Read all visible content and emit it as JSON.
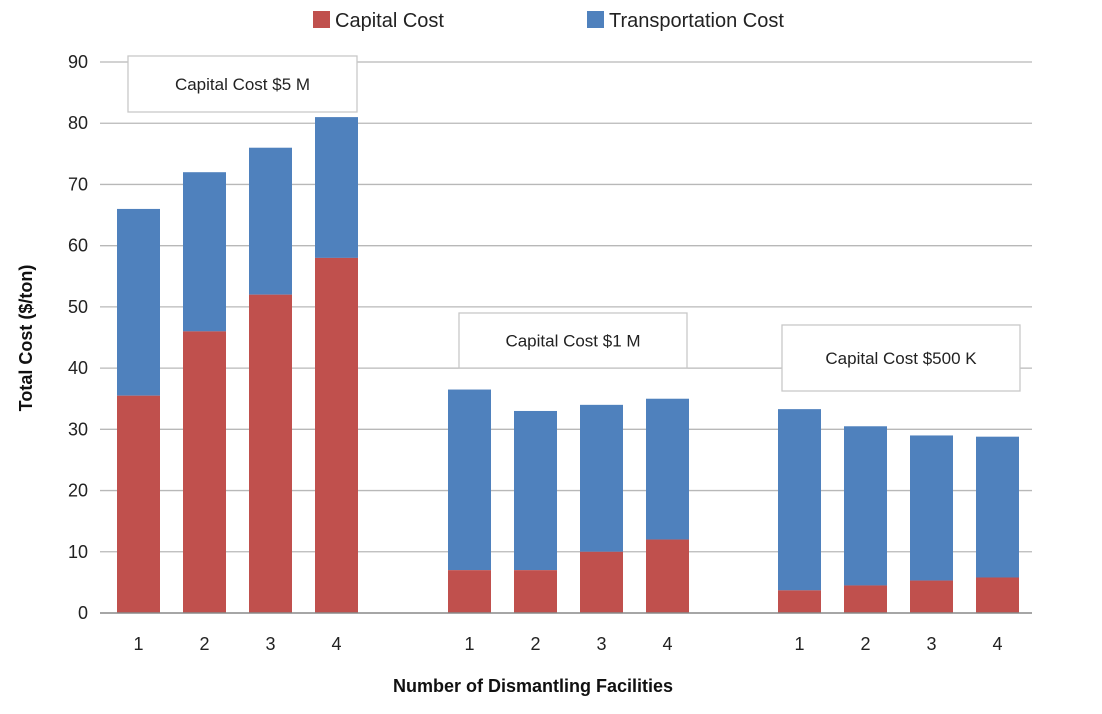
{
  "chart_data": {
    "type": "bar",
    "stacked": true,
    "xlabel": "Number of Dismantling Facilities",
    "ylabel": "Total Cost ($/ton)",
    "ylim": [
      0,
      90
    ],
    "yticks": [
      0,
      10,
      20,
      30,
      40,
      50,
      60,
      70,
      80,
      90
    ],
    "grid": true,
    "legend_position": "top-center",
    "series": [
      {
        "name": "Capital Cost",
        "color": "#c0504d"
      },
      {
        "name": "Transportation Cost",
        "color": "#4f81bd"
      }
    ],
    "groups": [
      {
        "label": "Capital Cost $5 M",
        "categories": [
          "1",
          "2",
          "3",
          "4"
        ],
        "capital": [
          35.5,
          46,
          52,
          58
        ],
        "transportation": [
          30.5,
          26,
          24,
          23
        ]
      },
      {
        "label": "Capital Cost $1 M",
        "categories": [
          "1",
          "2",
          "3",
          "4"
        ],
        "capital": [
          7,
          7,
          10,
          12
        ],
        "transportation": [
          29.5,
          26,
          24,
          23
        ]
      },
      {
        "label": "Capital Cost $500 K",
        "categories": [
          "1",
          "2",
          "3",
          "4"
        ],
        "capital": [
          3.7,
          4.5,
          5.3,
          5.8
        ],
        "transportation": [
          29.6,
          26,
          23.7,
          23
        ]
      }
    ]
  }
}
